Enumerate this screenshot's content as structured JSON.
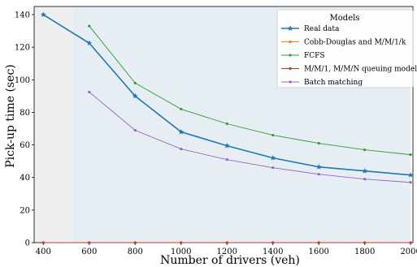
{
  "chart_data": {
    "type": "line",
    "xlabel": "Number of drivers (veh)",
    "ylabel": "Pick-up time (sec)",
    "xlim": [
      360,
      2010
    ],
    "ylim": [
      0,
      145
    ],
    "x_ticks": [
      400,
      600,
      800,
      1000,
      1200,
      1400,
      1600,
      1800,
      2000
    ],
    "y_ticks": [
      0,
      20,
      40,
      60,
      80,
      100,
      120,
      140
    ],
    "x_tick_labels": [
      "400",
      "600",
      "800",
      "1000",
      "1200",
      "1400",
      "1600",
      "1800",
      "2000"
    ],
    "y_tick_labels": [
      "0",
      "20",
      "40",
      "60",
      "80",
      "100",
      "120",
      "140"
    ],
    "shaded_regions": [
      {
        "x0": 360,
        "x1": 530,
        "color": "#efefef"
      },
      {
        "x0": 530,
        "x1": 2000,
        "color": "#e6eef3"
      }
    ],
    "legend": {
      "title": "Models",
      "placement": "top-right"
    },
    "series": [
      {
        "name": "Real data",
        "color": "#1f77b4",
        "marker": "star",
        "x": [
          400,
          600,
          800,
          1000,
          1200,
          1400,
          1600,
          1800,
          2000
        ],
        "values": [
          140,
          122.5,
          90,
          68,
          59.5,
          52,
          46.5,
          44,
          41.5
        ]
      },
      {
        "name": "Cobb-Douglas and M/M/1/k",
        "color": "#ff7f0e",
        "marker": "dot",
        "x": [
          400,
          600,
          800,
          1000,
          1200,
          1400,
          1600,
          1800,
          2000
        ],
        "values": [
          0,
          0,
          0,
          0,
          0,
          0,
          0,
          0,
          0
        ]
      },
      {
        "name": "FCFS",
        "color": "#2ca02c",
        "marker": "dot",
        "x": [
          600,
          800,
          1000,
          1200,
          1400,
          1600,
          1800,
          2000
        ],
        "values": [
          133,
          98,
          82,
          73,
          66,
          61,
          57,
          54
        ]
      },
      {
        "name": "M/M/1, M/M/N queuing model",
        "color": "#c0392b",
        "marker": "dot",
        "x": [
          400,
          600,
          800,
          1000,
          1200,
          1400,
          1600,
          1800,
          2000
        ],
        "values": [
          0,
          0,
          0,
          0,
          0,
          0,
          0,
          0,
          0
        ]
      },
      {
        "name": "Batch matching",
        "color": "#9467bd",
        "marker": "dot",
        "x": [
          600,
          800,
          1000,
          1200,
          1400,
          1600,
          1800,
          2000
        ],
        "values": [
          92.5,
          69,
          57.5,
          51,
          46,
          42,
          39,
          37
        ]
      }
    ]
  }
}
